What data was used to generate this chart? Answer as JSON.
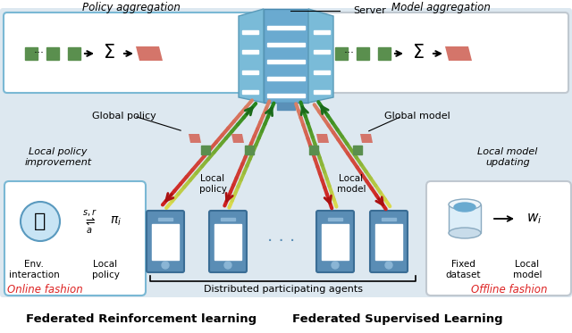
{
  "bg_color": "#dde8f0",
  "title_left": "Federated Reinforcement learning",
  "title_right": "Federated Supervised Learning",
  "server_label": "Server",
  "policy_agg_label": "Policy aggregation",
  "model_agg_label": "Model aggregation",
  "global_policy_label": "Global policy",
  "global_model_label": "Global model",
  "local_policy_label": "Local\npolicy",
  "local_model_label": "Local\nmodel",
  "local_policy_improvement": "Local policy\nimprovement",
  "local_model_updating": "Local model\nupdating",
  "online_fashion": "Online fashion",
  "offline_fashion": "Offline fashion",
  "distributed_agents": "Distributed participating agents",
  "green_sq": "#5a8f4e",
  "pink_sq": "#d4756a",
  "server_blue_dark": "#5a90b8",
  "server_blue_mid": "#6aaad0",
  "server_blue_light": "#8abcd8",
  "phone_dark": "#4a7aa0",
  "phone_mid": "#6a9abf",
  "green_arrow": "#2a7a2a",
  "red_arrow": "#cc2222",
  "yellow_fade": "#e8d870"
}
